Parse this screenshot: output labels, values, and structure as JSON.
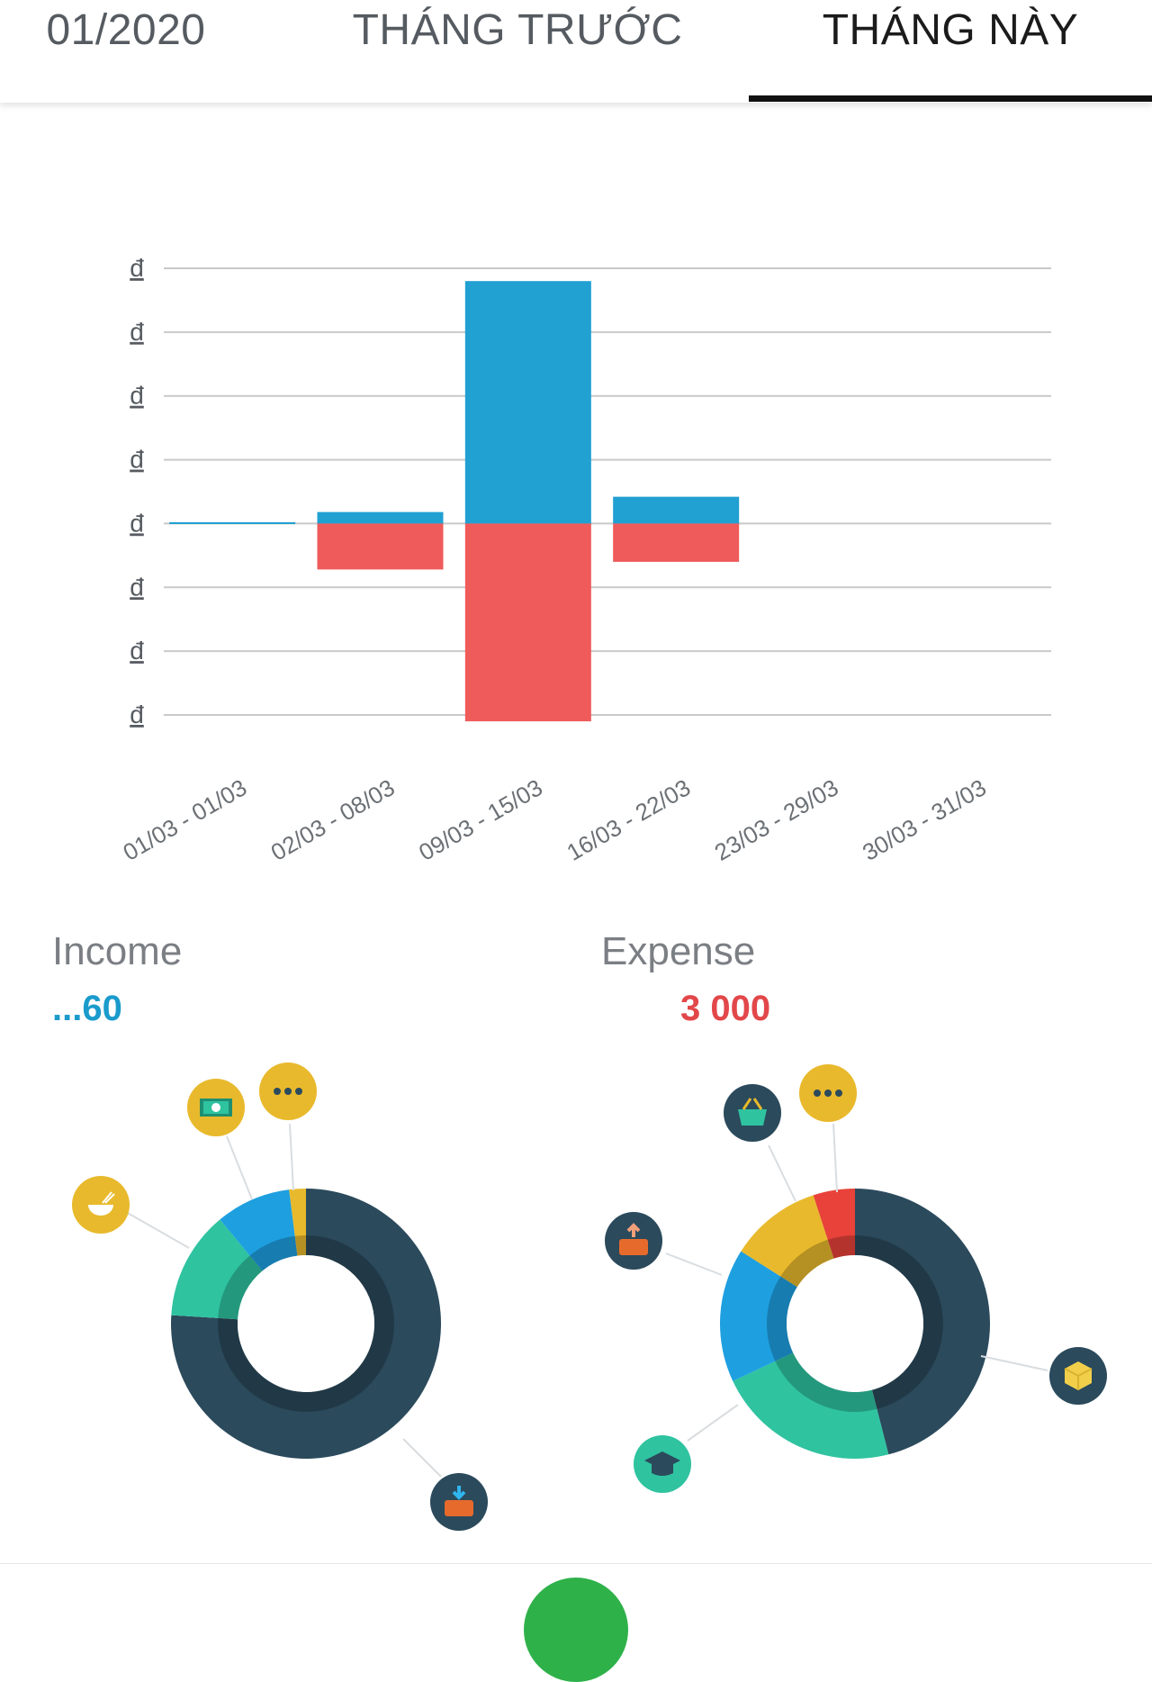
{
  "tabs": [
    {
      "label": "01/2020"
    },
    {
      "label": "THÁNG TRƯỚC"
    },
    {
      "label": "THÁNG NÀY"
    }
  ],
  "chart_data": {
    "type": "bar",
    "categories": [
      "01/03 - 01/03",
      "02/03 - 08/03",
      "09/03 - 15/03",
      "16/03 - 22/03",
      "23/03 - 29/03",
      "30/03 - 31/03"
    ],
    "series": [
      {
        "color": "#21a0d2",
        "values": [
          0.02,
          0.18,
          3.8,
          0.42,
          0,
          0
        ]
      },
      {
        "color": "#ef5a5a",
        "values": [
          0,
          -0.72,
          -3.1,
          -0.6,
          0,
          0
        ]
      }
    ],
    "ytick_labels": [
      "đ",
      "đ",
      "đ",
      "đ",
      "đ",
      "đ",
      "đ",
      "đ"
    ],
    "ylim": [
      -3,
      4
    ],
    "grid": true,
    "legend": "none"
  },
  "income": {
    "title": "Income",
    "total": "...60",
    "color": "#1a9bcc",
    "slices": [
      {
        "icon": "salary-wallet-icon",
        "value": 76,
        "color": "#2b4a5c"
      },
      {
        "icon": "food-bowl-icon",
        "value": 13,
        "color": "#2fc3a0"
      },
      {
        "icon": "money-bill-icon",
        "value": 9,
        "color": "#1e9fe0"
      },
      {
        "icon": "more-dots-icon",
        "value": 2,
        "color": "#e8b92c"
      }
    ]
  },
  "expense": {
    "title": "Expense",
    "total": "3 000",
    "color": "#e2474a",
    "slices": [
      {
        "icon": "box-icon",
        "value": 46,
        "color": "#2b4a5c"
      },
      {
        "icon": "education-cap-icon",
        "value": 22,
        "color": "#2fc3a0"
      },
      {
        "icon": "transfer-wallet-icon",
        "value": 16,
        "color": "#1e9fe0"
      },
      {
        "icon": "shopping-basket-icon",
        "value": 11,
        "color": "#e8b92c"
      },
      {
        "icon": "more-dots-icon",
        "value": 5,
        "color": "#e8423a"
      }
    ]
  }
}
